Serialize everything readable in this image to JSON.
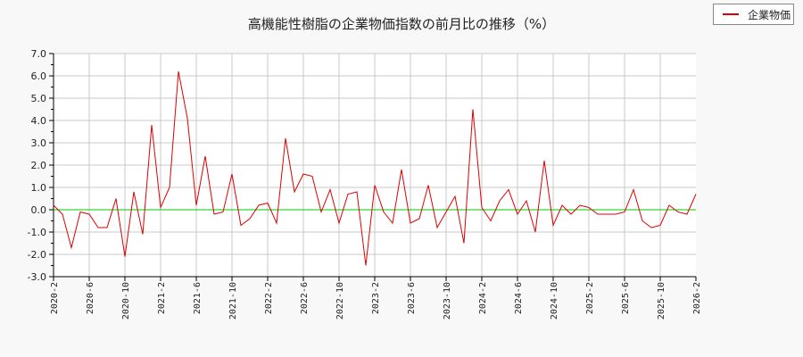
{
  "chart_data": {
    "type": "line",
    "title": "高機能性樹脂の企業物価指数の前月比の推移（%）",
    "xlabel": "",
    "ylabel": "",
    "ylim": [
      -3.0,
      7.0
    ],
    "yticks": [
      "7.0",
      "6.0",
      "5.0",
      "4.0",
      "3.0",
      "2.0",
      "1.0",
      "0.0",
      "-1.0",
      "-2.0",
      "-3.0"
    ],
    "xticks": [
      "2020-2",
      "2020-6",
      "2020-10",
      "2021-2",
      "2021-6",
      "2021-10",
      "2022-2",
      "2022-6",
      "2022-10",
      "2023-2",
      "2023-6",
      "2023-10",
      "2024-2",
      "2024-6",
      "2024-10",
      "2025-2",
      "2025-6",
      "2025-10",
      "2026-2"
    ],
    "grid": true,
    "legend_position": "top-right",
    "zero_line_color": "#00cc00",
    "series": [
      {
        "name": "企業物価",
        "color": "#dd0000",
        "start": "2020-2",
        "values": [
          0.2,
          -0.2,
          -1.7,
          -0.1,
          -0.2,
          -0.8,
          -0.8,
          0.5,
          -2.1,
          0.8,
          -1.1,
          3.8,
          0.1,
          1.0,
          6.2,
          4.1,
          0.2,
          2.4,
          -0.2,
          -0.1,
          1.6,
          -0.7,
          -0.4,
          0.2,
          0.3,
          -0.6,
          3.2,
          0.8,
          1.6,
          1.5,
          -0.1,
          0.9,
          -0.6,
          0.7,
          0.8,
          -2.5,
          1.1,
          -0.1,
          -0.6,
          1.8,
          -0.6,
          -0.4,
          1.1,
          -0.8,
          -0.1,
          0.6,
          -1.5,
          4.5,
          0.1,
          -0.5,
          0.4,
          0.9,
          -0.2,
          0.4,
          -1.0,
          2.2,
          -0.7,
          0.2,
          -0.2,
          0.2,
          0.1,
          -0.2,
          -0.2,
          -0.2,
          -0.1,
          0.9,
          -0.5,
          -0.8,
          -0.7,
          0.2,
          -0.1,
          -0.2,
          0.7
        ]
      }
    ]
  },
  "legend": {
    "label": "企業物価"
  }
}
